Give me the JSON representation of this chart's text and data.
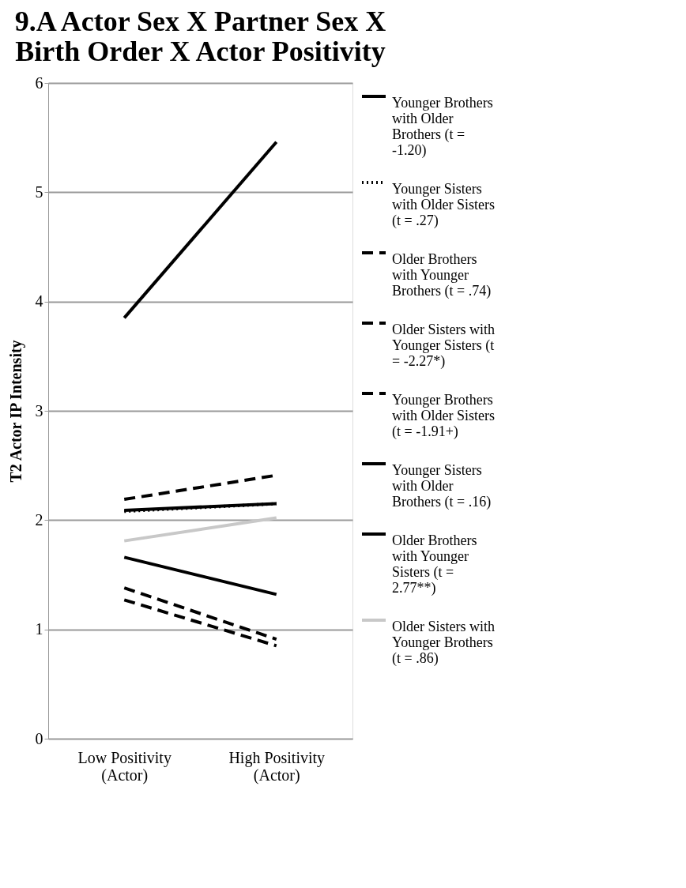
{
  "chart_data": {
    "type": "line",
    "title": "9.A Actor Sex X Partner Sex X Birth Order X Actor Positivity",
    "ylabel": "T2 Actor IP Intensity",
    "categories": [
      "Low Positivity (Actor)",
      "High Positivity (Actor)"
    ],
    "ylim": [
      0,
      6
    ],
    "yticks": [
      0,
      1,
      2,
      3,
      4,
      5,
      6
    ],
    "grid": "y",
    "legend": "right",
    "marker": "none",
    "series": [
      {
        "name": "Younger Brothers with Older Brothers (t = -1.20)",
        "color": "#000000",
        "line_style": "solid",
        "values": [
          1.66,
          1.32
        ]
      },
      {
        "name": "Younger Sisters with Older Sisters (t = .27)",
        "color": "#000000",
        "line_style": "dotted",
        "values": [
          2.08,
          2.15
        ]
      },
      {
        "name": "Older Brothers with Younger Brothers (t = .74)",
        "color": "#000000",
        "line_style": "dashed",
        "values": [
          2.19,
          2.41
        ]
      },
      {
        "name": "Older Sisters with Younger Sisters (t = -2.27*)",
        "color": "#000000",
        "line_style": "dashed",
        "values": [
          1.38,
          0.91
        ]
      },
      {
        "name": "Younger Brothers with Older Sisters (t = -1.91+)",
        "color": "#000000",
        "line_style": "dashed",
        "values": [
          1.27,
          0.85
        ]
      },
      {
        "name": "Younger Sisters with Older Brothers (t = .16)",
        "color": "#000000",
        "line_style": "solid",
        "values": [
          2.09,
          2.15
        ]
      },
      {
        "name": "Older Brothers with Younger Sisters (t = 2.77**)",
        "color": "#000000",
        "line_style": "solid",
        "values": [
          3.85,
          5.46
        ]
      },
      {
        "name": "Older Sisters with Younger Brothers (t = .86)",
        "color": "#c8c8c8",
        "line_style": "solid",
        "values": [
          1.81,
          2.02
        ]
      }
    ]
  }
}
